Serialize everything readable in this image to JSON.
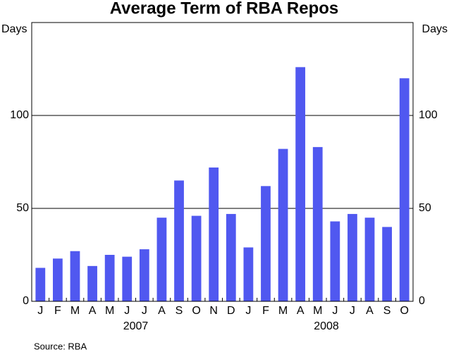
{
  "chart_data": {
    "type": "bar",
    "title": "Average Term of RBA Repos",
    "y_label": "Days",
    "y2_label": "Days",
    "categories": [
      "J",
      "F",
      "M",
      "A",
      "M",
      "J",
      "J",
      "A",
      "S",
      "O",
      "N",
      "D",
      "J",
      "F",
      "M",
      "A",
      "M",
      "J",
      "J",
      "A",
      "S",
      "O"
    ],
    "years": [
      "2007",
      null,
      null,
      null,
      null,
      null,
      null,
      null,
      null,
      null,
      null,
      null,
      "2008",
      null,
      null,
      null,
      null,
      null,
      null,
      null,
      null,
      null
    ],
    "values": [
      18,
      23,
      27,
      19,
      25,
      24,
      28,
      45,
      65,
      46,
      72,
      47,
      29,
      62,
      82,
      126,
      83,
      43,
      47,
      45,
      40,
      120
    ],
    "color": "#5058f0",
    "ylim": [
      0,
      150
    ],
    "yticks": [
      0,
      50,
      100
    ],
    "y2lim": [
      0,
      150
    ],
    "y2ticks": [
      0,
      50,
      100
    ],
    "grid": true,
    "source": "Source: RBA"
  }
}
